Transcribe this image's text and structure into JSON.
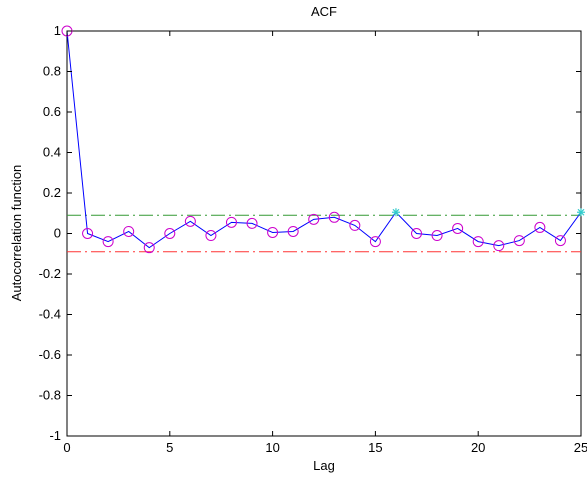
{
  "chart_data": {
    "type": "line",
    "title": "ACF",
    "xlabel": "Lag",
    "ylabel": "Autocorrelation function",
    "xlim": [
      0,
      25
    ],
    "ylim": [
      -1,
      1
    ],
    "grid": false,
    "x_ticks": [
      0,
      5,
      10,
      15,
      20,
      25
    ],
    "y_ticks": [
      -1,
      -0.8,
      -0.6,
      -0.4,
      -0.2,
      0,
      0.2,
      0.4,
      0.6,
      0.8,
      1
    ],
    "series": [
      {
        "color": "#0000ff",
        "marker": "circle",
        "marker_color": "#cc00cc",
        "x": [
          0,
          1,
          2,
          3,
          4,
          5,
          6,
          7,
          8,
          9,
          10,
          11,
          12,
          13,
          14,
          15,
          16,
          17,
          18,
          19,
          20,
          21,
          22,
          23,
          24,
          25
        ],
        "y": [
          1.0,
          0.0,
          -0.04,
          0.01,
          -0.07,
          0.0,
          0.06,
          -0.01,
          0.055,
          0.05,
          0.005,
          0.01,
          0.07,
          0.08,
          0.04,
          -0.04,
          0.105,
          0.0,
          -0.01,
          0.025,
          -0.04,
          -0.06,
          -0.035,
          0.03,
          -0.035,
          0.105
        ],
        "star_marker_x": [
          16,
          25
        ],
        "star_color": "#33cccc"
      }
    ],
    "bounds": [
      {
        "value": 0.09,
        "color": "#339933",
        "style": "dash-dot"
      },
      {
        "value": -0.09,
        "color": "#ff3333",
        "style": "dash-dot"
      }
    ]
  }
}
